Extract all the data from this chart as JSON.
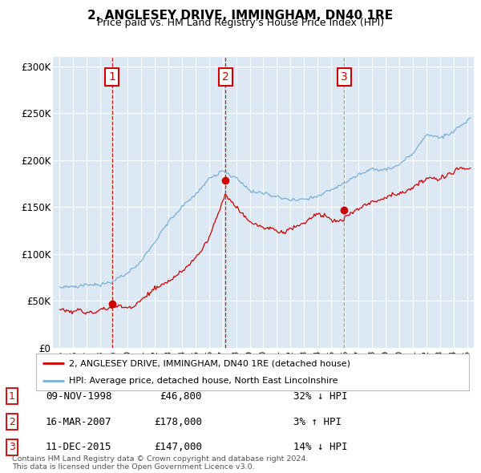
{
  "title": "2, ANGLESEY DRIVE, IMMINGHAM, DN40 1RE",
  "subtitle": "Price paid vs. HM Land Registry's House Price Index (HPI)",
  "red_label": "2, ANGLESEY DRIVE, IMMINGHAM, DN40 1RE (detached house)",
  "blue_label": "HPI: Average price, detached house, North East Lincolnshire",
  "transactions": [
    {
      "num": 1,
      "date": "09-NOV-1998",
      "year": 1998.86,
      "price": 46800,
      "pct": "32%",
      "dir": "↓"
    },
    {
      "num": 2,
      "date": "16-MAR-2007",
      "year": 2007.21,
      "price": 178000,
      "pct": "3%",
      "dir": "↑"
    },
    {
      "num": 3,
      "date": "11-DEC-2015",
      "year": 2015.95,
      "price": 147000,
      "pct": "14%",
      "dir": "↓"
    }
  ],
  "ylim": [
    0,
    310000
  ],
  "yticks": [
    0,
    50000,
    100000,
    150000,
    200000,
    250000,
    300000
  ],
  "plot_bg": "#dce9f5",
  "grid_color": "#ffffff",
  "red_color": "#cc0000",
  "blue_color": "#7aaed6",
  "dashed_color_red": "#cc0000",
  "dashed_color_grey": "#999999",
  "box_color": "#cc0000",
  "footer": "Contains HM Land Registry data © Crown copyright and database right 2024.\nThis data is licensed under the Open Government Licence v3.0.",
  "xmin": 1994.5,
  "xmax": 2025.5,
  "vline_colors": [
    "#cc0000",
    "#cc0000",
    "#999999"
  ]
}
